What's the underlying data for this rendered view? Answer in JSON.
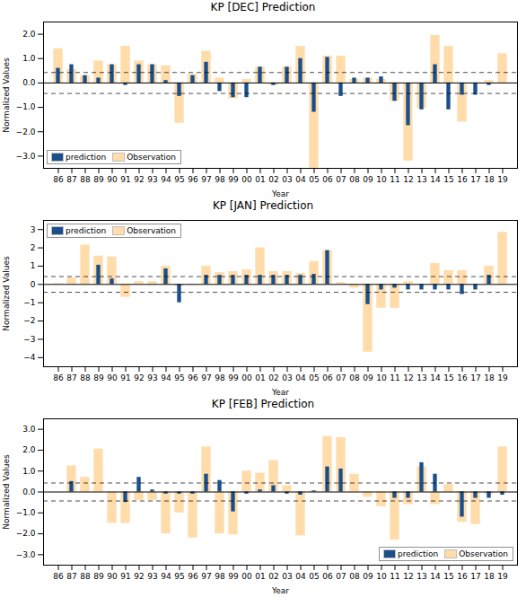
{
  "chart_data": [
    {
      "type": "bar",
      "title": "KP [DEC] Prediction",
      "xlabel": "Year",
      "ylabel": "Normalized Values",
      "categories": [
        "86",
        "87",
        "88",
        "89",
        "90",
        "91",
        "92",
        "93",
        "94",
        "95",
        "96",
        "97",
        "98",
        "99",
        "00",
        "01",
        "02",
        "03",
        "04",
        "05",
        "06",
        "07",
        "08",
        "09",
        "10",
        "11",
        "12",
        "13",
        "14",
        "15",
        "16",
        "17",
        "18",
        "19"
      ],
      "series": [
        {
          "name": "Observation",
          "color": "#FFDCAA",
          "values": [
            1.4,
            0.55,
            0.3,
            0.9,
            0.75,
            1.5,
            0.9,
            0.75,
            0.7,
            -1.65,
            0.35,
            1.3,
            0.2,
            -0.65,
            0.15,
            0.65,
            -0.1,
            0.65,
            1.5,
            -3.5,
            1.1,
            1.1,
            0.15,
            0.2,
            0.15,
            -0.75,
            -3.2,
            -1.05,
            1.95,
            1.5,
            -1.6,
            -0.05,
            0.1,
            1.2
          ]
        },
        {
          "name": "prediction",
          "color": "#1A4F8A",
          "values": [
            0.6,
            0.75,
            0.3,
            0.2,
            0.75,
            -0.1,
            0.75,
            0.75,
            0.1,
            -0.55,
            0.3,
            0.85,
            -0.35,
            -0.6,
            -0.6,
            0.65,
            -0.1,
            0.65,
            1.0,
            -1.2,
            1.05,
            -0.55,
            0.2,
            0.2,
            0.25,
            -0.75,
            -1.75,
            -1.1,
            0.75,
            -1.1,
            -0.5,
            -0.5,
            -0.1,
            0.0
          ]
        }
      ],
      "reference_lines": [
        0.43,
        -0.43
      ],
      "ylim": [
        -3.5,
        2.5
      ],
      "yticks": [
        -3,
        -2,
        -1,
        0,
        1,
        2
      ],
      "legend": "lower left",
      "grid": false
    },
    {
      "type": "bar",
      "title": "KP [JAN] Prediction",
      "xlabel": "Year",
      "ylabel": "Normalized Values",
      "categories": [
        "86",
        "87",
        "88",
        "89",
        "90",
        "91",
        "92",
        "93",
        "94",
        "95",
        "96",
        "97",
        "98",
        "99",
        "00",
        "01",
        "02",
        "03",
        "04",
        "05",
        "06",
        "07",
        "08",
        "09",
        "10",
        "11",
        "12",
        "13",
        "14",
        "15",
        "16",
        "17",
        "18",
        "19"
      ],
      "series": [
        {
          "name": "Observation",
          "color": "#FFDCAA",
          "values": [
            0.05,
            0.35,
            2.15,
            1.55,
            1.5,
            -0.7,
            0.15,
            0.15,
            1.0,
            -0.1,
            -0.05,
            1.0,
            0.65,
            0.7,
            0.8,
            2.0,
            0.7,
            0.7,
            0.6,
            1.25,
            1.85,
            0.1,
            -0.2,
            -3.7,
            -1.3,
            -1.3,
            0.15,
            0.0,
            1.15,
            0.75,
            0.75,
            0.0,
            1.0,
            2.85
          ]
        },
        {
          "name": "prediction",
          "color": "#1A4F8A",
          "values": [
            0.0,
            0.0,
            0.0,
            1.05,
            0.3,
            0.0,
            0.0,
            0.0,
            0.85,
            -1.0,
            0.0,
            0.5,
            0.5,
            0.5,
            0.5,
            0.5,
            0.5,
            0.5,
            0.5,
            0.55,
            1.85,
            0.0,
            0.0,
            -1.1,
            -0.3,
            -0.2,
            -0.3,
            -0.3,
            -0.3,
            -0.3,
            -0.55,
            -0.3,
            0.5,
            0.0
          ]
        }
      ],
      "reference_lines": [
        0.43,
        -0.43
      ],
      "ylim": [
        -4.5,
        3.5
      ],
      "yticks": [
        -4,
        -3,
        -2,
        -1,
        0,
        1,
        2,
        3
      ],
      "legend": "upper left",
      "grid": false
    },
    {
      "type": "bar",
      "title": "KP [FEB] Prediction",
      "xlabel": "Year",
      "ylabel": "Normalized Values",
      "categories": [
        "86",
        "87",
        "88",
        "89",
        "90",
        "91",
        "92",
        "93",
        "94",
        "95",
        "96",
        "97",
        "98",
        "99",
        "00",
        "01",
        "02",
        "03",
        "04",
        "05",
        "06",
        "07",
        "08",
        "09",
        "10",
        "11",
        "12",
        "13",
        "14",
        "15",
        "16",
        "17",
        "18",
        "19"
      ],
      "series": [
        {
          "name": "Observation",
          "color": "#FFDCAA",
          "values": [
            0.0,
            1.25,
            0.7,
            2.05,
            -1.5,
            -1.5,
            -0.4,
            -0.4,
            -2.0,
            -1.0,
            -2.2,
            2.15,
            -2.0,
            -2.05,
            1.0,
            0.9,
            1.5,
            0.3,
            -2.1,
            0.05,
            2.65,
            2.6,
            0.85,
            -0.25,
            -0.7,
            -2.3,
            -0.6,
            1.2,
            -0.6,
            0.35,
            -1.45,
            -1.55,
            -0.1,
            2.15
          ]
        },
        {
          "name": "prediction",
          "color": "#1A4F8A",
          "values": [
            0.0,
            0.5,
            0.0,
            0.0,
            0.0,
            -0.5,
            0.7,
            0.1,
            -0.1,
            -0.1,
            -0.1,
            0.85,
            0.55,
            -0.95,
            -0.1,
            0.1,
            0.3,
            -0.1,
            -0.15,
            0.05,
            1.2,
            1.1,
            0.0,
            0.0,
            0.0,
            -0.3,
            -0.3,
            1.4,
            0.85,
            0.0,
            -1.2,
            -0.3,
            -0.3,
            -0.15
          ]
        }
      ],
      "reference_lines": [
        0.43,
        -0.43
      ],
      "ylim": [
        -3.5,
        3.5
      ],
      "yticks": [
        -3,
        -2,
        -1,
        0,
        1,
        2,
        3
      ],
      "legend": "lower right",
      "grid": false
    }
  ]
}
